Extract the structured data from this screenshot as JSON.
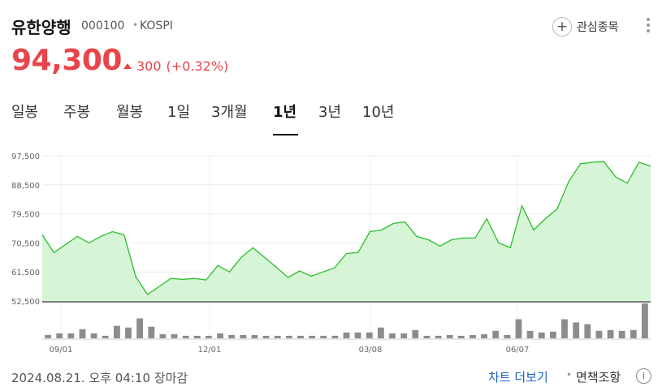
{
  "stock": {
    "name": "유한양행",
    "code": "000100",
    "market": "KOSPI",
    "price": "94,300",
    "change": "300",
    "change_pct": "(+0.32%)",
    "favorite_label": "관심종목"
  },
  "tabs": [
    "일봉",
    "주봉",
    "월봉",
    "1일",
    "3개월",
    "1년",
    "3년",
    "10년"
  ],
  "active_tab": "1년",
  "footer": {
    "timestamp": "2024.08.21. 오후 04:10 장마감",
    "chart_link": "차트 더보기",
    "disclaimer": "면책조항",
    "info_glyph": "i"
  },
  "colors": {
    "up_red": "#e8454a",
    "line_green": "#2dbd2d",
    "area_green": "#d6f5d6",
    "volume_gray": "#8c8c8c",
    "link_blue": "#1a62d0"
  },
  "chart_data": {
    "type": "area",
    "yticks": [
      "97,500",
      "88,500",
      "79,500",
      "70,500",
      "61,500",
      "52,500"
    ],
    "ylim": [
      52500,
      97500
    ],
    "x_labels": [
      "09/01",
      "12/01",
      "03/08",
      "06/07"
    ],
    "price_series": [
      73000,
      67500,
      70000,
      72500,
      70500,
      72500,
      74000,
      73000,
      60000,
      54500,
      57000,
      59500,
      59200,
      59500,
      59000,
      63500,
      61500,
      66000,
      69000,
      66000,
      63000,
      59800,
      61800,
      60200,
      61500,
      62800,
      67200,
      67500,
      74000,
      74500,
      76500,
      77000,
      72500,
      71500,
      69500,
      71500,
      72000,
      72000,
      78000,
      70500,
      69000,
      82000,
      74500,
      78000,
      81000,
      89500,
      95000,
      95500,
      95700,
      91000,
      89000,
      95500,
      94300
    ],
    "volume_series": [
      4,
      6,
      6,
      11,
      6,
      3,
      15,
      13,
      24,
      14,
      5,
      5,
      3,
      3,
      3,
      6,
      4,
      4,
      4,
      3,
      3,
      3,
      3,
      3,
      3,
      3,
      7,
      7,
      7,
      13,
      6,
      6,
      10,
      3,
      3,
      4,
      3,
      4,
      5,
      9,
      4,
      23,
      9,
      7,
      8,
      23,
      19,
      17,
      9,
      10,
      9,
      10,
      42
    ],
    "grid": true
  }
}
